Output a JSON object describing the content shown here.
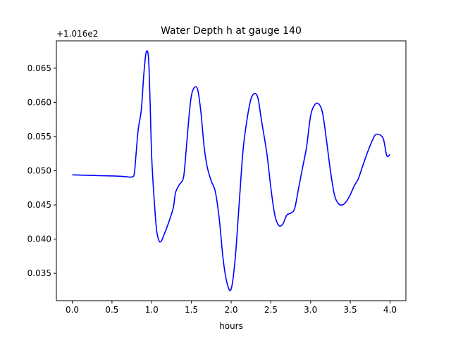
{
  "chart_data": {
    "type": "line",
    "title": "Water Depth h at gauge 140",
    "xlabel": "hours",
    "ylabel": "",
    "offset_label": "+1.016e2",
    "offset_value": 101.6,
    "xlim": [
      -0.2,
      4.2
    ],
    "ylim": [
      0.031,
      0.069
    ],
    "xticks": [
      0.0,
      0.5,
      1.0,
      1.5,
      2.0,
      2.5,
      3.0,
      3.5,
      4.0
    ],
    "xtick_labels": [
      "0.0",
      "0.5",
      "1.0",
      "1.5",
      "2.0",
      "2.5",
      "3.0",
      "3.5",
      "4.0"
    ],
    "yticks": [
      0.035,
      0.04,
      0.045,
      0.05,
      0.055,
      0.06,
      0.065
    ],
    "ytick_labels": [
      "0.035",
      "0.040",
      "0.045",
      "0.050",
      "0.055",
      "0.060",
      "0.065"
    ],
    "grid": false,
    "legend": "none",
    "series": [
      {
        "color": "#0000ff",
        "x": [
          0.0,
          0.3,
          0.6,
          0.7,
          0.75,
          0.78,
          0.8,
          0.83,
          0.87,
          0.9,
          0.93,
          0.96,
          0.98,
          1.0,
          1.03,
          1.06,
          1.09,
          1.12,
          1.15,
          1.2,
          1.27,
          1.3,
          1.35,
          1.4,
          1.43,
          1.47,
          1.5,
          1.54,
          1.58,
          1.62,
          1.66,
          1.7,
          1.75,
          1.8,
          1.85,
          1.9,
          1.95,
          2.0,
          2.05,
          2.1,
          2.15,
          2.2,
          2.25,
          2.3,
          2.34,
          2.38,
          2.45,
          2.5,
          2.55,
          2.6,
          2.65,
          2.7,
          2.75,
          2.8,
          2.85,
          2.9,
          2.95,
          3.0,
          3.05,
          3.1,
          3.15,
          3.2,
          3.25,
          3.3,
          3.35,
          3.4,
          3.45,
          3.5,
          3.55,
          3.6,
          3.65,
          3.72,
          3.78,
          3.82,
          3.88,
          3.92,
          3.96,
          4.0
        ],
        "y": [
          0.0494,
          0.0493,
          0.0492,
          0.0491,
          0.0491,
          0.0495,
          0.052,
          0.056,
          0.059,
          0.064,
          0.0673,
          0.0665,
          0.06,
          0.052,
          0.046,
          0.0415,
          0.0398,
          0.0397,
          0.0405,
          0.042,
          0.0445,
          0.0468,
          0.048,
          0.049,
          0.0525,
          0.058,
          0.061,
          0.0622,
          0.0618,
          0.0585,
          0.0535,
          0.0505,
          0.0485,
          0.047,
          0.043,
          0.037,
          0.0335,
          0.0327,
          0.037,
          0.045,
          0.053,
          0.0575,
          0.0605,
          0.0613,
          0.0605,
          0.0575,
          0.0525,
          0.0475,
          0.0435,
          0.042,
          0.0422,
          0.0435,
          0.0438,
          0.0445,
          0.0475,
          0.0505,
          0.0535,
          0.058,
          0.0596,
          0.0598,
          0.0585,
          0.0545,
          0.05,
          0.0465,
          0.0452,
          0.045,
          0.0455,
          0.0465,
          0.0478,
          0.0488,
          0.0505,
          0.0528,
          0.0545,
          0.0553,
          0.0552,
          0.0545,
          0.0522,
          0.0524
        ]
      }
    ]
  }
}
